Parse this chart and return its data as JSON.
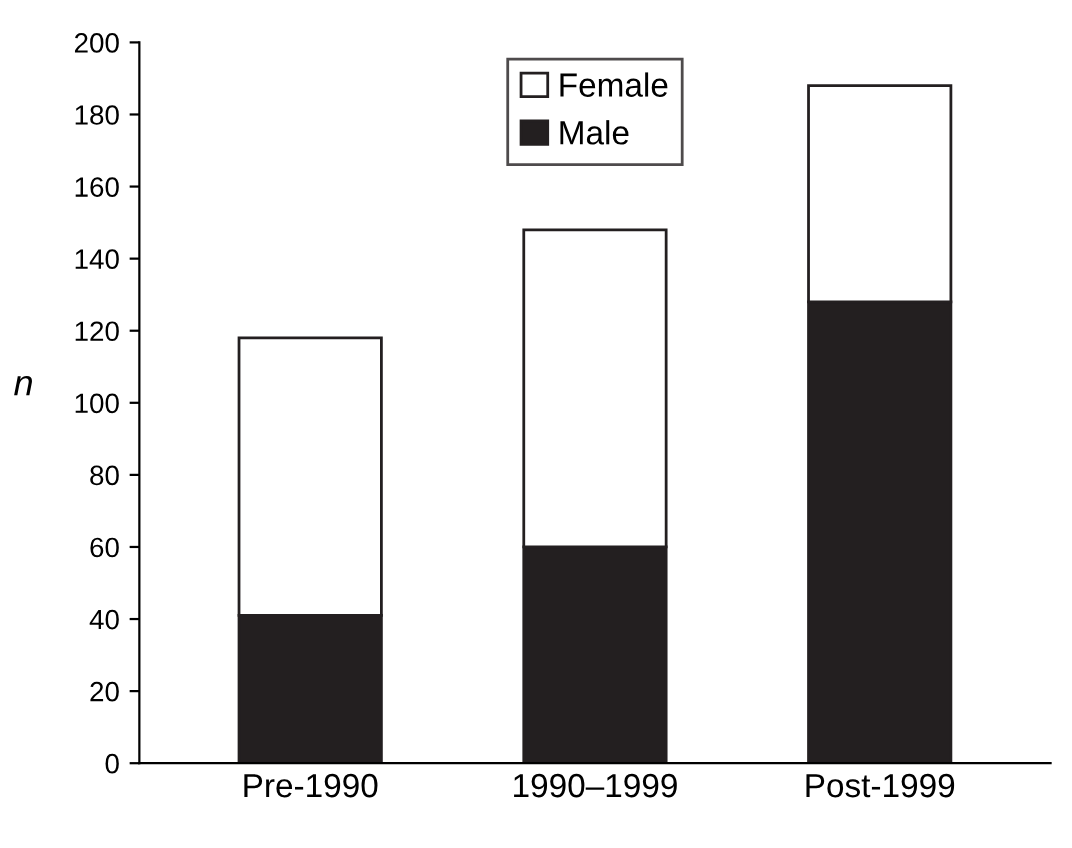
{
  "chart_data": {
    "type": "bar",
    "stacked": true,
    "ylabel": "n",
    "categories": [
      "Pre-1990",
      "1990–1999",
      "Post-1999"
    ],
    "series": [
      {
        "name": "Male",
        "color": "#231f20",
        "values": [
          41,
          60,
          128
        ]
      },
      {
        "name": "Female",
        "color": "#ffffff",
        "values": [
          77,
          88,
          60
        ]
      }
    ],
    "ylim": [
      0,
      200
    ],
    "yticks": [
      0,
      20,
      40,
      60,
      80,
      100,
      120,
      140,
      160,
      180,
      200
    ],
    "grid": false,
    "legend": "top"
  }
}
